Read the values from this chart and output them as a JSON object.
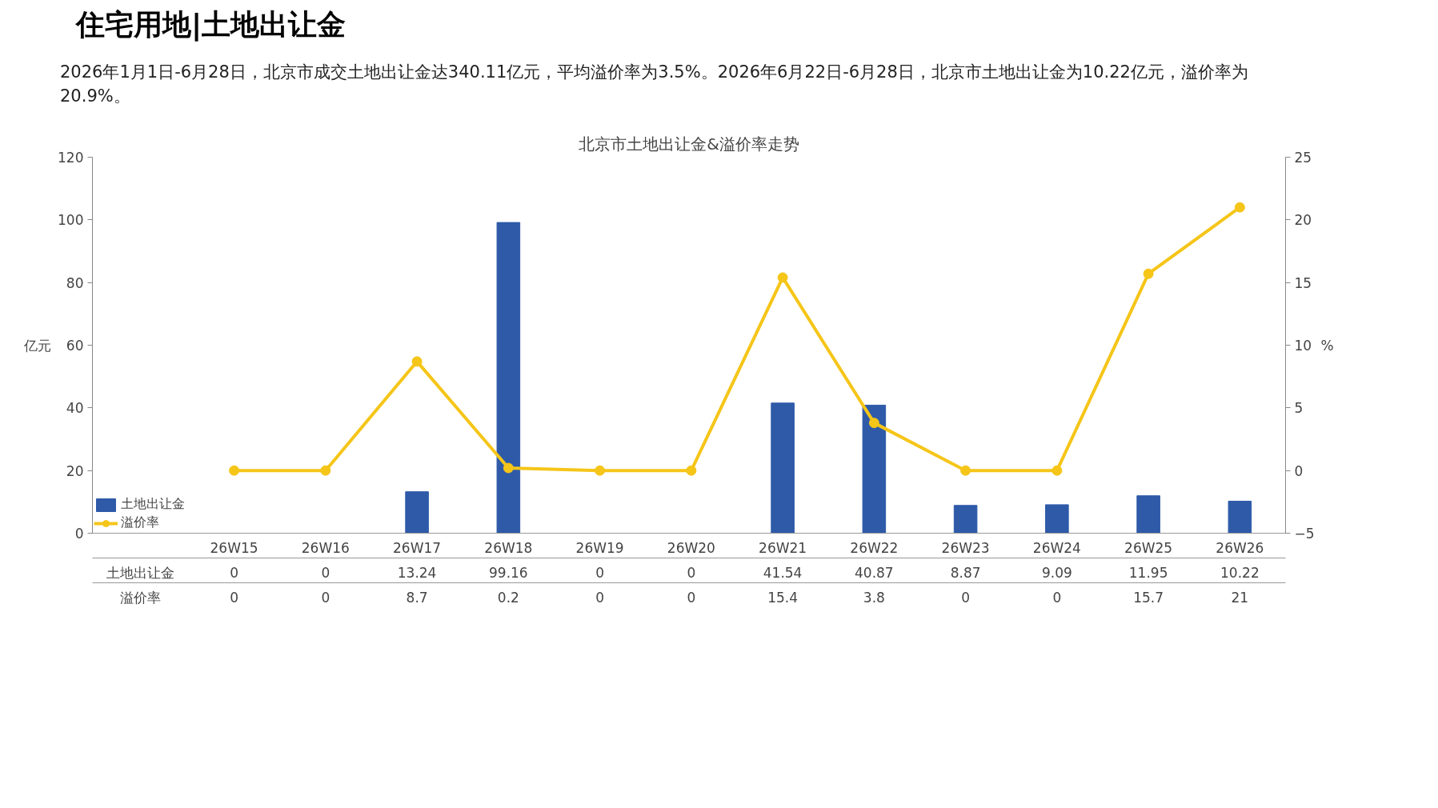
{
  "chart_data": {
    "type": "bar",
    "title": "北京市土地出让金&溢价率走势",
    "subtitle": "2026年1月1日-6月28日，北京市成交土地出让金达340.11亿元，平均溢价率为3.5%。2026年6月22日-6月28日，北京市土地出让金为10.22亿元，溢价率为20.9%。",
    "annotations": [
      "住宅用地|土地出让金"
    ],
    "ylabel": "亿元",
    "y2label": "%",
    "categories": [
      "26W15",
      "26W16",
      "26W17",
      "26W18",
      "26W19",
      "26W20",
      "26W21",
      "26W22",
      "26W23",
      "26W24",
      "26W25",
      "26W26"
    ],
    "series": [
      {
        "name": "土地出让金",
        "color": "#2e5aa8",
        "values": [
          0,
          0,
          13.24,
          99.16,
          0,
          0,
          41.54,
          40.87,
          8.87,
          9.09,
          11.95,
          10.22
        ]
      },
      {
        "name": "溢价率",
        "type": "line",
        "axis": "y2",
        "color": "#f5c518",
        "values": [
          0,
          0,
          8.7,
          0.2,
          0,
          0,
          15.4,
          3.8,
          0,
          0,
          15.7,
          21
        ]
      }
    ],
    "ylim": [
      0,
      120
    ],
    "yticks": [
      0,
      20,
      40,
      60,
      80,
      100,
      120
    ],
    "y2lim": [
      -5,
      25
    ],
    "y2ticks": [
      -5,
      0,
      5,
      10,
      15,
      20,
      25
    ],
    "data_labels": true,
    "legend": "bottom left",
    "grid": false,
    "marker": "circle",
    "line_style": "solid"
  }
}
